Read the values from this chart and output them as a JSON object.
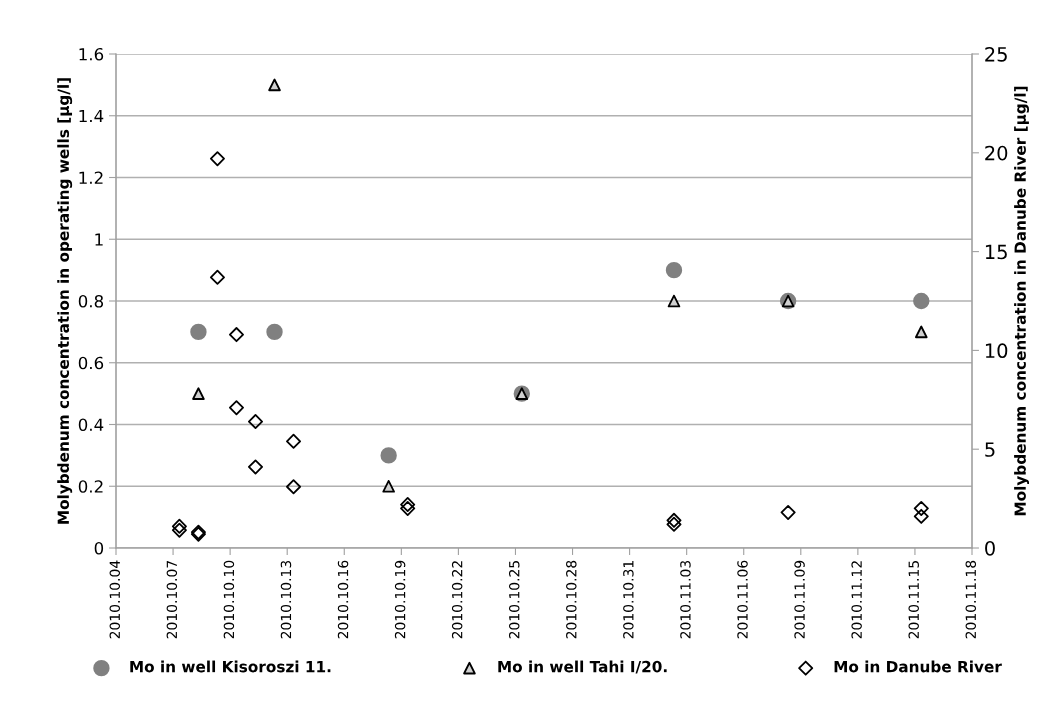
{
  "chart_data": {
    "type": "scatter",
    "ylabel": "Molybdenum concentration in operating wells [µg/l]",
    "y2label": "Molybdenum concentration in Danube River [µg/l]",
    "series": [
      {
        "name": "Mo in well Kisoroszi 11.",
        "color": "#808080",
        "marker": "circle",
        "x": [
          "2010-10-08T08:00",
          "2010-10-12T08:00",
          "2010-10-18T08:00",
          "2010-10-25T08:00",
          "2010-11-02T08:00",
          "2010-11-08T08:00",
          "2010-11-15T08:00"
        ],
        "values": [
          0.7,
          0.7,
          0.3,
          0.5,
          0.9,
          0.8,
          0.8
        ]
      },
      {
        "name": "Mo in well Tahi I/20.",
        "color": "#d0d0d0",
        "marker": "triangle",
        "x": [
          "2010-10-08T08:00",
          "2010-10-12T08:00",
          "2010-10-18T08:00",
          "2010-10-25T08:00",
          "2010-11-02T08:00",
          "2010-11-08T08:00",
          "2010-11-15T08:00"
        ],
        "values": [
          0.5,
          1.5,
          0.2,
          0.5,
          0.8,
          0.8,
          0.7
        ]
      },
      {
        "name": "Mo in Danube River",
        "color": "#000000",
        "marker": "diamond",
        "axis": "y2",
        "x": [
          "2010-10-07T08:00",
          "2010-10-07T08:00",
          "2010-10-08T08:00",
          "2010-10-08T08:00",
          "2010-10-09T08:00",
          "2010-10-09T08:00",
          "2010-10-10T08:00",
          "2010-10-10T08:00",
          "2010-10-11T08:00",
          "2010-10-11T08:00",
          "2010-10-13T08:00",
          "2010-10-13T08:00",
          "2010-10-19T08:00",
          "2010-10-19T08:00",
          "2010-11-02T08:00",
          "2010-11-02T08:00",
          "2010-11-08T08:00",
          "2010-11-15T08:00",
          "2010-11-15T08:00"
        ],
        "values": [
          1.1,
          0.9,
          0.8,
          0.7,
          19.7,
          13.7,
          10.8,
          7.1,
          6.4,
          4.1,
          5.4,
          3.1,
          2.2,
          2.0,
          1.4,
          1.2,
          1.8,
          2.0,
          1.6
        ]
      }
    ],
    "xlim": [
      "2010-10-04",
      "2010-11-18"
    ],
    "xticks": [
      {
        "value": "2010-10-04",
        "label": "2010.10.04"
      },
      {
        "value": "2010-10-07",
        "label": "2010.10.07"
      },
      {
        "value": "2010-10-10",
        "label": "2010.10.10"
      },
      {
        "value": "2010-10-13",
        "label": "2010.10.13"
      },
      {
        "value": "2010-10-16",
        "label": "2010.10.16"
      },
      {
        "value": "2010-10-19",
        "label": "2010.10.19"
      },
      {
        "value": "2010-10-22",
        "label": "2010.10.22"
      },
      {
        "value": "2010-10-25",
        "label": "2010.10.25"
      },
      {
        "value": "2010-10-28",
        "label": "2010.10.28"
      },
      {
        "value": "2010-10-31",
        "label": "2010.10.31"
      },
      {
        "value": "2010-11-03",
        "label": "2010.11.03"
      },
      {
        "value": "2010-11-06",
        "label": "2010.11.06"
      },
      {
        "value": "2010-11-09",
        "label": "2010.11.09"
      },
      {
        "value": "2010-11-12",
        "label": "2010.11.12"
      },
      {
        "value": "2010-11-15",
        "label": "2010.11.15"
      },
      {
        "value": "2010-11-18",
        "label": "2010.11.18"
      }
    ],
    "ylim": [
      0,
      1.6
    ],
    "yticks": [
      0,
      {
        "value": 0.2,
        "label": "0.2"
      },
      {
        "value": 0.4,
        "label": "0.4"
      },
      {
        "value": 0.6,
        "label": "0.6"
      },
      {
        "value": 0.8,
        "label": "0.8"
      },
      1,
      {
        "value": 1.2,
        "label": "1.2"
      },
      {
        "value": 1.4,
        "label": "1.4"
      },
      {
        "value": 1.6,
        "label": "1.6"
      }
    ],
    "y2lim": [
      0,
      25
    ],
    "y2ticks": [
      0,
      5,
      10,
      15,
      20,
      25
    ],
    "grid": "y",
    "legend": "bottom"
  }
}
